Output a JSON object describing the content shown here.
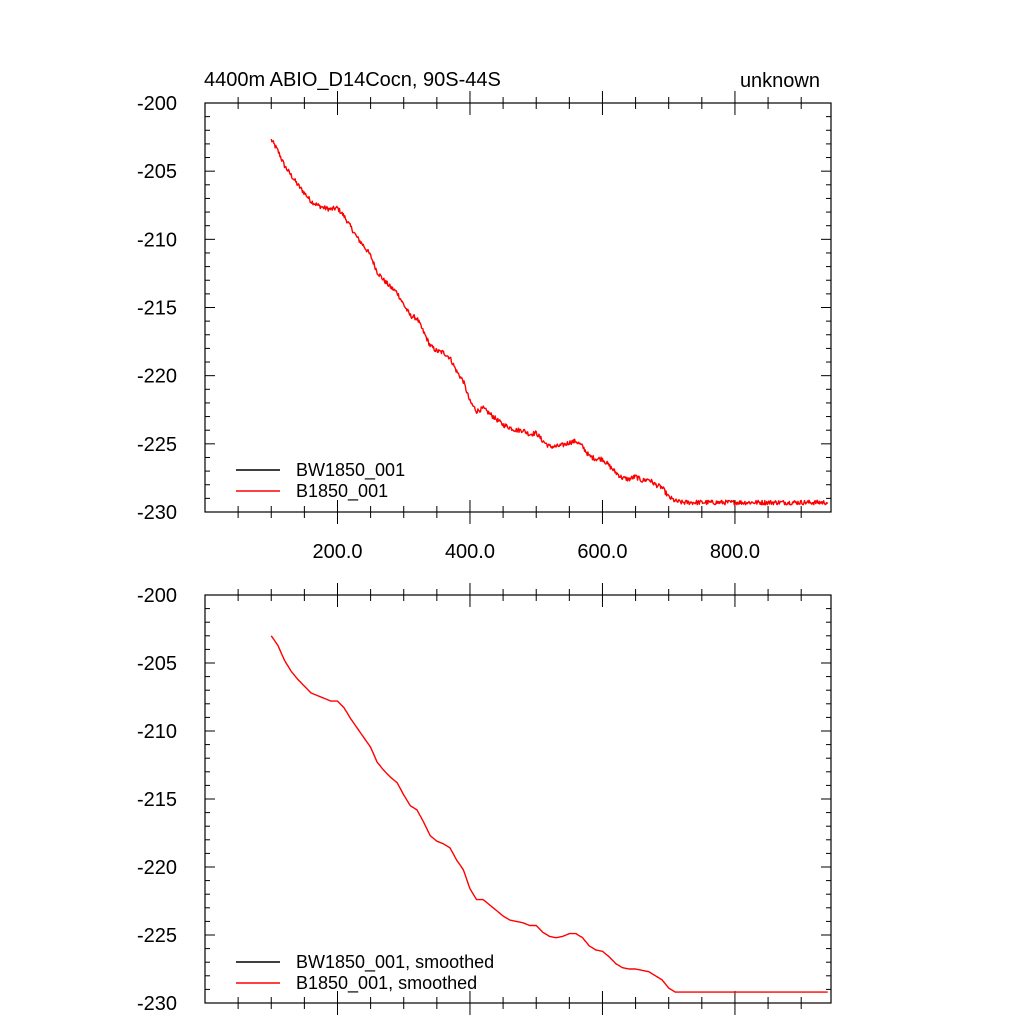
{
  "chart_data": [
    {
      "type": "line",
      "title": "4400m ABIO_D14Cocn, 90S-44S",
      "title_right": "unknown",
      "xlabel": "",
      "ylabel": "",
      "xlim": [
        0,
        945
      ],
      "ylim": [
        -230,
        -200
      ],
      "x_ticks": [
        200,
        400,
        600,
        800
      ],
      "x_tick_labels": [
        "200.0",
        "400.0",
        "600.0",
        "800.0"
      ],
      "y_ticks": [
        -200,
        -205,
        -210,
        -215,
        -220,
        -225,
        -230
      ],
      "y_tick_labels": [
        "-200",
        "-205",
        "-210",
        "-215",
        "-220",
        "-225",
        "-230"
      ],
      "grid": false,
      "legend_position": "bottom-left",
      "series": [
        {
          "name": "BW1850_001",
          "color": "#000000",
          "x": [],
          "y": []
        },
        {
          "name": "B1850_001",
          "color": "#ff0000",
          "x": [
            100,
            110,
            120,
            130,
            140,
            150,
            160,
            170,
            180,
            190,
            200,
            210,
            220,
            230,
            240,
            250,
            260,
            270,
            280,
            290,
            300,
            310,
            320,
            330,
            340,
            350,
            360,
            370,
            380,
            390,
            400,
            410,
            420,
            430,
            440,
            450,
            460,
            470,
            480,
            490,
            500,
            510,
            520,
            530,
            540,
            550,
            560,
            570,
            580,
            590,
            600,
            610,
            620,
            630,
            640,
            650,
            660,
            670,
            680,
            690,
            700,
            710,
            720,
            730,
            740,
            750,
            760,
            770,
            780,
            790,
            800,
            810,
            820,
            830,
            840,
            850,
            860,
            870,
            880,
            890,
            900,
            910,
            920,
            930,
            940
          ],
          "y": [
            -202.7,
            -203.5,
            -204.6,
            -205.3,
            -206.0,
            -206.6,
            -207.2,
            -207.5,
            -207.7,
            -207.8,
            -207.7,
            -208.3,
            -209.1,
            -209.9,
            -210.5,
            -211.2,
            -212.4,
            -213.0,
            -213.5,
            -213.9,
            -214.8,
            -215.6,
            -215.8,
            -216.8,
            -217.8,
            -218.2,
            -218.3,
            -218.7,
            -219.7,
            -220.4,
            -221.9,
            -222.6,
            -222.4,
            -222.8,
            -223.2,
            -223.6,
            -223.8,
            -224.0,
            -224.0,
            -224.3,
            -224.2,
            -224.8,
            -225.2,
            -225.2,
            -225.1,
            -224.9,
            -224.8,
            -225.2,
            -225.9,
            -226.1,
            -226.1,
            -226.6,
            -227.1,
            -227.5,
            -227.6,
            -227.4,
            -227.7,
            -227.6,
            -228.0,
            -228.2,
            -228.9,
            -229.2,
            -229.3,
            -229.3,
            -229.3,
            -229.3,
            -229.3,
            -229.3,
            -229.3,
            -229.3,
            -229.3,
            -229.3,
            -229.3,
            -229.3,
            -229.3,
            -229.3,
            -229.3,
            -229.3,
            -229.3,
            -229.3,
            -229.3,
            -229.3,
            -229.3,
            -229.3,
            -229.3
          ],
          "noisy": true
        }
      ]
    },
    {
      "type": "line",
      "title": "",
      "xlabel": "",
      "ylabel": "",
      "xlim": [
        0,
        945
      ],
      "ylim": [
        -230,
        -200
      ],
      "x_ticks": [
        200,
        400,
        600,
        800
      ],
      "x_tick_labels": [],
      "y_ticks": [
        -200,
        -205,
        -210,
        -215,
        -220,
        -225,
        -230
      ],
      "y_tick_labels": [
        "-200",
        "-205",
        "-210",
        "-215",
        "-220",
        "-225",
        "-230"
      ],
      "grid": false,
      "legend_position": "bottom-left",
      "series": [
        {
          "name": "BW1850_001, smoothed",
          "color": "#000000",
          "x": [],
          "y": []
        },
        {
          "name": "B1850_001, smoothed",
          "color": "#ff0000",
          "x": [
            100,
            110,
            120,
            130,
            140,
            150,
            160,
            170,
            180,
            190,
            200,
            210,
            220,
            230,
            240,
            250,
            260,
            270,
            280,
            290,
            300,
            310,
            320,
            330,
            340,
            350,
            360,
            370,
            380,
            390,
            400,
            410,
            420,
            430,
            440,
            450,
            460,
            470,
            480,
            490,
            500,
            510,
            520,
            530,
            540,
            550,
            560,
            570,
            580,
            590,
            600,
            610,
            620,
            630,
            640,
            650,
            660,
            670,
            680,
            690,
            700,
            710,
            720,
            730,
            740,
            750,
            760,
            770,
            780,
            790,
            800,
            810,
            820,
            830,
            840,
            850,
            860,
            870,
            880,
            890,
            900,
            910,
            920,
            930,
            940
          ],
          "y": [
            -203.0,
            -203.7,
            -204.8,
            -205.6,
            -206.2,
            -206.7,
            -207.2,
            -207.4,
            -207.6,
            -207.8,
            -207.8,
            -208.3,
            -209.1,
            -209.8,
            -210.5,
            -211.2,
            -212.3,
            -212.9,
            -213.4,
            -213.8,
            -214.7,
            -215.5,
            -215.8,
            -216.7,
            -217.7,
            -218.1,
            -218.3,
            -218.6,
            -219.5,
            -220.2,
            -221.6,
            -222.4,
            -222.4,
            -222.8,
            -223.2,
            -223.6,
            -223.9,
            -224.0,
            -224.1,
            -224.3,
            -224.3,
            -224.8,
            -225.1,
            -225.2,
            -225.1,
            -224.9,
            -224.9,
            -225.2,
            -225.8,
            -226.1,
            -226.2,
            -226.6,
            -227.1,
            -227.4,
            -227.5,
            -227.5,
            -227.6,
            -227.7,
            -228.0,
            -228.3,
            -228.9,
            -229.2,
            -229.2,
            -229.2,
            -229.2,
            -229.2,
            -229.2,
            -229.2,
            -229.2,
            -229.2,
            -229.2,
            -229.2,
            -229.2,
            -229.2,
            -229.2,
            -229.2,
            -229.2,
            -229.2,
            -229.2,
            -229.2,
            -229.2,
            -229.2,
            -229.2,
            -229.2,
            -229.2
          ],
          "noisy": false
        }
      ]
    }
  ]
}
